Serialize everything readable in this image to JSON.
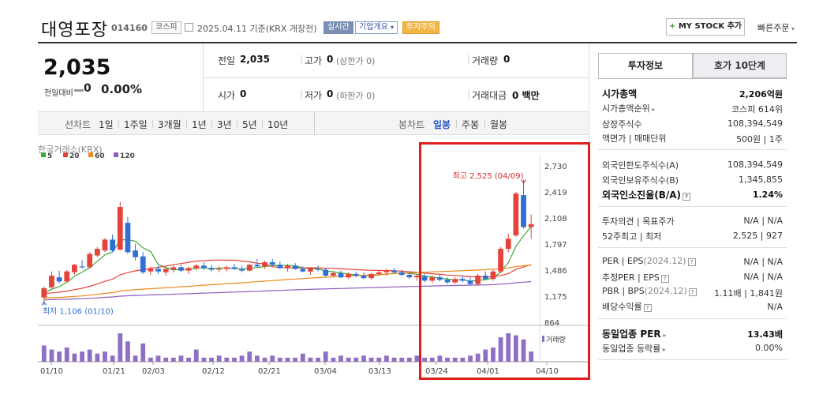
{
  "header": {
    "company": "대영포장",
    "code": "014160",
    "market": "코스피",
    "date_info": "2025.04.11 기준(KRX 개장전)",
    "btn_live": "실시간",
    "btn_overview": "기업개요",
    "btn_warn": "투자주의",
    "mystock": "MY STOCK 추가",
    "quick": "빠른주문"
  },
  "price": {
    "current": "2,035",
    "change_label": "전일대비",
    "change_value": "0",
    "change_pct": "0.00%"
  },
  "stats": {
    "prev_label": "전일",
    "prev_value": "2,035",
    "high_label": "고가",
    "high_value": "0",
    "high_sub": "(상한가 0)",
    "volume_label": "거래량",
    "volume_value": "0",
    "open_label": "시가",
    "open_value": "0",
    "low_label": "저가",
    "low_value": "0",
    "low_sub": "(하한가 0)",
    "amount_label": "거래대금",
    "amount_value": "0 백만"
  },
  "periods": {
    "line_chart": "선차트",
    "items": [
      "1일",
      "1주일",
      "3개월",
      "1년",
      "3년",
      "5년",
      "10년"
    ],
    "candle_chart": "봉차트",
    "candle_items": [
      "일봉",
      "주봉",
      "월봉"
    ],
    "selected": "일봉"
  },
  "chart": {
    "exchange_label": "한국거래소(KRX)",
    "ma_legend": [
      {
        "label": "5",
        "color": "#3aa935"
      },
      {
        "label": "20",
        "color": "#e5433a"
      },
      {
        "label": "60",
        "color": "#f08a1c"
      },
      {
        "label": "120",
        "color": "#8e5dbf"
      }
    ],
    "high_annot": "최고 2,525 (04/09)",
    "low_annot": "최저 1,106 (01/10)",
    "volume_label": "거래량",
    "up_color": "#e5433a",
    "down_color": "#2f6fd6"
  },
  "chart_data": {
    "type": "candlestick",
    "ylim": [
      864,
      2730
    ],
    "yticks": [
      "2,730",
      "2,419",
      "2,108",
      "1,797",
      "1,486",
      "1,175",
      "864"
    ],
    "ytick_values": [
      2730,
      2419,
      2108,
      1797,
      1486,
      1175,
      864
    ],
    "xticks": [
      "01/10",
      "01/21",
      "02/03",
      "02/12",
      "02/21",
      "03/04",
      "03/13",
      "03/24",
      "04/01",
      "04/10"
    ],
    "candles": [
      {
        "o": 1160,
        "h": 1290,
        "l": 1106,
        "c": 1270
      },
      {
        "o": 1280,
        "h": 1470,
        "l": 1250,
        "c": 1420
      },
      {
        "o": 1400,
        "h": 1480,
        "l": 1330,
        "c": 1350
      },
      {
        "o": 1350,
        "h": 1490,
        "l": 1340,
        "c": 1470
      },
      {
        "o": 1460,
        "h": 1560,
        "l": 1430,
        "c": 1550
      },
      {
        "o": 1530,
        "h": 1610,
        "l": 1500,
        "c": 1520
      },
      {
        "o": 1520,
        "h": 1700,
        "l": 1500,
        "c": 1680
      },
      {
        "o": 1660,
        "h": 1760,
        "l": 1640,
        "c": 1740
      },
      {
        "o": 1720,
        "h": 1870,
        "l": 1700,
        "c": 1850
      },
      {
        "o": 1850,
        "h": 1910,
        "l": 1700,
        "c": 1720
      },
      {
        "o": 1730,
        "h": 2300,
        "l": 1720,
        "c": 2240
      },
      {
        "o": 2050,
        "h": 2120,
        "l": 1680,
        "c": 1700
      },
      {
        "o": 1720,
        "h": 1800,
        "l": 1600,
        "c": 1640
      },
      {
        "o": 1650,
        "h": 1700,
        "l": 1440,
        "c": 1460
      },
      {
        "o": 1470,
        "h": 1530,
        "l": 1430,
        "c": 1500
      },
      {
        "o": 1500,
        "h": 1540,
        "l": 1440,
        "c": 1470
      },
      {
        "o": 1460,
        "h": 1520,
        "l": 1420,
        "c": 1500
      },
      {
        "o": 1490,
        "h": 1540,
        "l": 1460,
        "c": 1520
      },
      {
        "o": 1520,
        "h": 1550,
        "l": 1460,
        "c": 1480
      },
      {
        "o": 1480,
        "h": 1530,
        "l": 1440,
        "c": 1510
      },
      {
        "o": 1510,
        "h": 1560,
        "l": 1480,
        "c": 1540
      },
      {
        "o": 1540,
        "h": 1580,
        "l": 1490,
        "c": 1510
      },
      {
        "o": 1510,
        "h": 1550,
        "l": 1470,
        "c": 1490
      },
      {
        "o": 1490,
        "h": 1530,
        "l": 1460,
        "c": 1500
      },
      {
        "o": 1500,
        "h": 1540,
        "l": 1470,
        "c": 1520
      },
      {
        "o": 1520,
        "h": 1560,
        "l": 1490,
        "c": 1500
      },
      {
        "o": 1500,
        "h": 1540,
        "l": 1460,
        "c": 1480
      },
      {
        "o": 1480,
        "h": 1560,
        "l": 1470,
        "c": 1550
      },
      {
        "o": 1550,
        "h": 1620,
        "l": 1520,
        "c": 1530
      },
      {
        "o": 1530,
        "h": 1600,
        "l": 1500,
        "c": 1580
      },
      {
        "o": 1580,
        "h": 1620,
        "l": 1540,
        "c": 1550
      },
      {
        "o": 1550,
        "h": 1590,
        "l": 1500,
        "c": 1510
      },
      {
        "o": 1510,
        "h": 1560,
        "l": 1470,
        "c": 1540
      },
      {
        "o": 1540,
        "h": 1570,
        "l": 1490,
        "c": 1500
      },
      {
        "o": 1500,
        "h": 1530,
        "l": 1460,
        "c": 1470
      },
      {
        "o": 1470,
        "h": 1520,
        "l": 1430,
        "c": 1500
      },
      {
        "o": 1500,
        "h": 1540,
        "l": 1470,
        "c": 1490
      },
      {
        "o": 1490,
        "h": 1510,
        "l": 1410,
        "c": 1420
      },
      {
        "o": 1420,
        "h": 1470,
        "l": 1400,
        "c": 1450
      },
      {
        "o": 1450,
        "h": 1480,
        "l": 1390,
        "c": 1400
      },
      {
        "o": 1400,
        "h": 1460,
        "l": 1380,
        "c": 1440
      },
      {
        "o": 1440,
        "h": 1470,
        "l": 1400,
        "c": 1420
      },
      {
        "o": 1420,
        "h": 1460,
        "l": 1380,
        "c": 1390
      },
      {
        "o": 1390,
        "h": 1450,
        "l": 1370,
        "c": 1440
      },
      {
        "o": 1440,
        "h": 1490,
        "l": 1420,
        "c": 1460
      },
      {
        "o": 1460,
        "h": 1500,
        "l": 1420,
        "c": 1480
      },
      {
        "o": 1480,
        "h": 1510,
        "l": 1440,
        "c": 1460
      },
      {
        "o": 1460,
        "h": 1490,
        "l": 1410,
        "c": 1430
      },
      {
        "o": 1430,
        "h": 1460,
        "l": 1380,
        "c": 1400
      },
      {
        "o": 1400,
        "h": 1440,
        "l": 1360,
        "c": 1420
      },
      {
        "o": 1410,
        "h": 1440,
        "l": 1340,
        "c": 1360
      },
      {
        "o": 1360,
        "h": 1420,
        "l": 1330,
        "c": 1400
      },
      {
        "o": 1400,
        "h": 1430,
        "l": 1350,
        "c": 1370
      },
      {
        "o": 1370,
        "h": 1400,
        "l": 1320,
        "c": 1340
      },
      {
        "o": 1340,
        "h": 1400,
        "l": 1320,
        "c": 1380
      },
      {
        "o": 1380,
        "h": 1420,
        "l": 1340,
        "c": 1360
      },
      {
        "o": 1360,
        "h": 1400,
        "l": 1310,
        "c": 1320
      },
      {
        "o": 1320,
        "h": 1440,
        "l": 1300,
        "c": 1420
      },
      {
        "o": 1420,
        "h": 1470,
        "l": 1370,
        "c": 1380
      },
      {
        "o": 1380,
        "h": 1490,
        "l": 1360,
        "c": 1470
      },
      {
        "o": 1470,
        "h": 1760,
        "l": 1450,
        "c": 1740
      },
      {
        "o": 1740,
        "h": 1920,
        "l": 1700,
        "c": 1860
      },
      {
        "o": 1900,
        "h": 2420,
        "l": 1880,
        "c": 2400
      },
      {
        "o": 2380,
        "h": 2525,
        "l": 1980,
        "c": 2000
      },
      {
        "o": 2000,
        "h": 2150,
        "l": 1860,
        "c": 2035
      }
    ],
    "volume": [
      8,
      6,
      5,
      7,
      4,
      5,
      6,
      4,
      5,
      3,
      14,
      10,
      3,
      9,
      2,
      3,
      2,
      2,
      3,
      2,
      6,
      2,
      2,
      3,
      2,
      2,
      3,
      5,
      3,
      2,
      3,
      2,
      2,
      2,
      4,
      2,
      2,
      5,
      2,
      3,
      2,
      2,
      3,
      2,
      2,
      3,
      2,
      2,
      2,
      3,
      2,
      2,
      3,
      2,
      2,
      2,
      3,
      4,
      6,
      7,
      12,
      14,
      13,
      11,
      5
    ]
  },
  "investment": {
    "tab_info": "투자정보",
    "tab_quote": "호가 10단계",
    "market_cap_label": "시가총액",
    "market_cap_value": "2,206억원",
    "cap_rank_label": "시가총액순위",
    "cap_rank_value": "코스피 614위",
    "shares_label": "상장주식수",
    "shares_value": "108,394,549",
    "face_label": "액면가 | 매매단위",
    "face_value": "500원 | 1주",
    "foreign_limit_label": "외국인한도주식수(A)",
    "foreign_limit_value": "108,394,549",
    "foreign_hold_label": "외국인보유주식수(B)",
    "foreign_hold_value": "1,345,855",
    "foreign_ratio_label": "외국인소진율(B/A)",
    "foreign_ratio_value": "1.24%",
    "opinion_label": "투자의견 | 목표주가",
    "opinion_value": "N/A | N/A",
    "week52_label": "52주최고 | 최저",
    "week52_value": "2,525 | 927",
    "per_label": "PER | EPS",
    "per_date": "(2024.12)",
    "per_value": "N/A | N/A",
    "est_label": "추정PER | EPS",
    "est_value": "N/A | N/A",
    "pbr_label": "PBR | BPS",
    "pbr_date": "(2024.12)",
    "pbr_value": "1.11배 | 1,841원",
    "div_label": "배당수익률",
    "div_value": "N/A",
    "sector_per_label": "동일업종 PER",
    "sector_per_value": "13.43배",
    "sector_rate_label": "동일업종 등락률",
    "sector_rate_value": "0.00%"
  }
}
